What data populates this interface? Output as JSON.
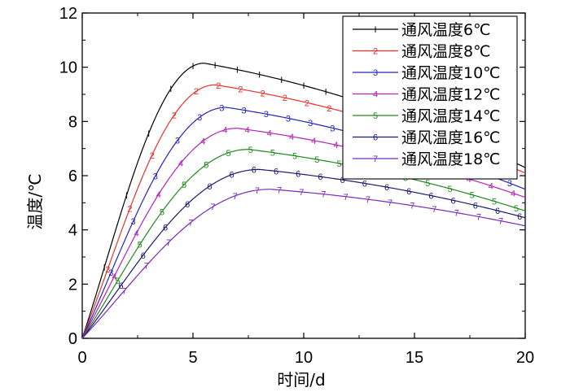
{
  "chart_data": {
    "type": "line",
    "xlabel": "时间/d",
    "ylabel": "温度/℃",
    "xlim": [
      0,
      20
    ],
    "ylim": [
      0,
      12
    ],
    "xticks": [
      0,
      5,
      10,
      15,
      20
    ],
    "yticks": [
      0,
      2,
      4,
      6,
      8,
      10,
      12
    ],
    "x_minor_step": 2.5,
    "y_minor_step": 1,
    "legend_position": "top-right",
    "grid": false,
    "series": [
      {
        "name": "通风温度6℃",
        "marker": "I",
        "color": "#000000",
        "peak_x": 5.5,
        "peak_y": 10.15,
        "end_y": 6.3
      },
      {
        "name": "通风温度8℃",
        "marker": "2",
        "color": "#e8302a",
        "peak_x": 6.0,
        "peak_y": 9.35,
        "end_y": 6.1
      },
      {
        "name": "通风温度10℃",
        "marker": "3",
        "color": "#2424b8",
        "peak_x": 6.5,
        "peak_y": 8.52,
        "end_y": 5.5
      },
      {
        "name": "通风温度12℃",
        "marker": "4",
        "color": "#b424b4",
        "peak_x": 7.0,
        "peak_y": 7.75,
        "end_y": 5.2
      },
      {
        "name": "通风温度14℃",
        "marker": "5",
        "color": "#1e8a1e",
        "peak_x": 7.5,
        "peak_y": 6.97,
        "end_y": 4.7
      },
      {
        "name": "通风温度16℃",
        "marker": "6",
        "color": "#1a1a6e",
        "peak_x": 8.0,
        "peak_y": 6.23,
        "end_y": 4.45
      },
      {
        "name": "通风温度18℃",
        "marker": "7",
        "color": "#7a2ab8",
        "peak_x": 8.5,
        "peak_y": 5.5,
        "end_y": 4.15
      }
    ]
  }
}
